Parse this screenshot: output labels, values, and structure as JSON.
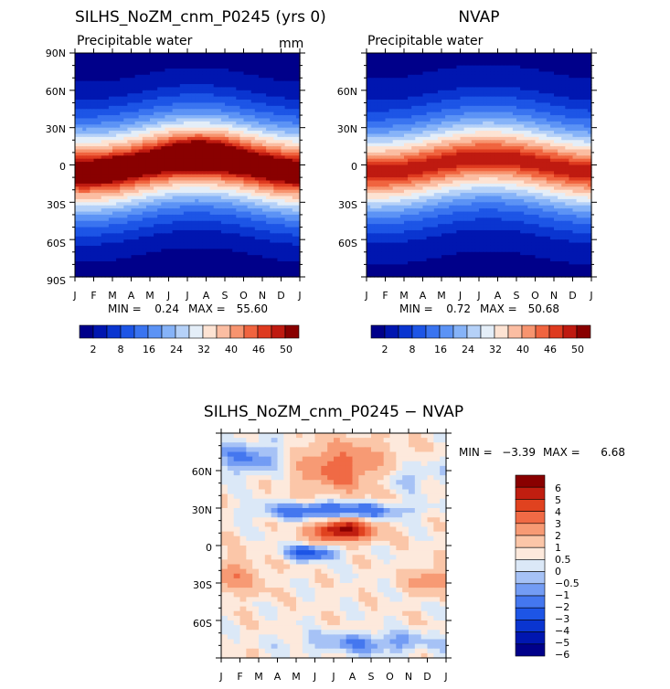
{
  "chart_data": [
    {
      "type": "heatmap",
      "title": "SILHS_NoZM_cnm_P0245 (yrs 0)",
      "subtitle": "Precipitable water",
      "units": "mm",
      "x_ticks": [
        "J",
        "F",
        "M",
        "A",
        "M",
        "J",
        "J",
        "A",
        "S",
        "O",
        "N",
        "D",
        "J"
      ],
      "y_ticks": [
        "90N",
        "60N",
        "30N",
        "0",
        "30S",
        "60S",
        "90S"
      ],
      "ylim": [
        -90,
        90
      ],
      "stats": {
        "min_label": "MIN =",
        "min": "0.24",
        "max_label": "MAX =",
        "max": "55.60"
      },
      "colorbar": {
        "levels": [
          "2",
          "8",
          "16",
          "24",
          "32",
          "40",
          "46",
          "50"
        ]
      }
    },
    {
      "type": "heatmap",
      "title": "NVAP",
      "subtitle": "Precipitable water",
      "x_ticks": [
        "J",
        "F",
        "M",
        "A",
        "M",
        "J",
        "J",
        "A",
        "S",
        "O",
        "N",
        "D",
        "J"
      ],
      "y_ticks": [
        "60N",
        "30N",
        "0",
        "30S",
        "60S"
      ],
      "ylim": [
        -90,
        90
      ],
      "stats": {
        "min_label": "MIN =",
        "min": "0.72",
        "max_label": "MAX =",
        "max": "50.68"
      },
      "colorbar": {
        "levels": [
          "2",
          "8",
          "16",
          "24",
          "32",
          "40",
          "46",
          "50"
        ]
      }
    },
    {
      "type": "heatmap",
      "title": "SILHS_NoZM_cnm_P0245 − NVAP",
      "x_ticks": [
        "J",
        "F",
        "M",
        "A",
        "M",
        "J",
        "J",
        "A",
        "S",
        "O",
        "N",
        "D",
        "J"
      ],
      "y_ticks": [
        "60N",
        "30N",
        "0",
        "30S",
        "60S"
      ],
      "ylim": [
        -90,
        90
      ],
      "stats": {
        "min_label": "MIN =",
        "min": "−3.39",
        "max_label": "MAX =",
        "max": "6.68"
      },
      "colorbar": {
        "levels": [
          "6",
          "5",
          "4",
          "3",
          "2",
          "1",
          "0.5",
          "0",
          "−0.5",
          "−1",
          "−2",
          "−3",
          "−4",
          "−5",
          "−6"
        ]
      }
    }
  ],
  "colors": {
    "abs_scale": [
      "#00008a",
      "#0016b0",
      "#0a35d0",
      "#1d55e6",
      "#3a74f0",
      "#5c93f5",
      "#86b3f8",
      "#b5d1f8",
      "#e4eef8",
      "#fde3d3",
      "#fbbda2",
      "#f7946f",
      "#f0643f",
      "#de3a1f",
      "#bf1a10",
      "#890000"
    ],
    "diff_scale": [
      "#00008a",
      "#0016b0",
      "#0a35d0",
      "#1d55e6",
      "#4477ef",
      "#739cf4",
      "#a6c2f6",
      "#dbe8f7",
      "#fde9dc",
      "#fbc6a8",
      "#f79a74",
      "#f06a45",
      "#e0421f",
      "#c01e10",
      "#890000"
    ]
  }
}
